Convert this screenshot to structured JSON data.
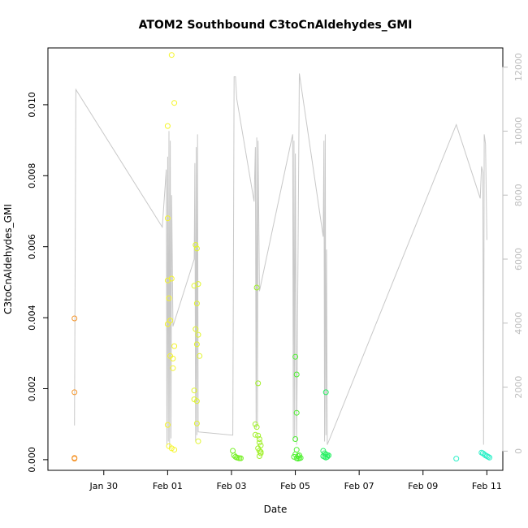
{
  "chart_data": {
    "type": "scatter",
    "title": "ATOM2 Southbound C3toCnAldehydes_GMI",
    "xlabel": "Date",
    "ylabel": "C3toCnAldehydes_GMI",
    "xlim": [
      "2017-01-28T06:00",
      "2017-02-11T12:00"
    ],
    "ylim": [
      -0.0003,
      0.0116
    ],
    "y_ticks": [
      "0.000",
      "0.002",
      "0.004",
      "0.006",
      "0.008",
      "0.010"
    ],
    "x_ticks": [
      "Jan 30",
      "Feb 01",
      "Feb 03",
      "Feb 05",
      "Feb 07",
      "Feb 09",
      "Feb 11"
    ],
    "right_axis": {
      "color": "#bebebe",
      "ylim": [
        -600,
        12600
      ],
      "ticks": [
        "0",
        "2000",
        "4000",
        "6000",
        "8000",
        "10000",
        "12000"
      ]
    },
    "grid": false,
    "points": [
      {
        "x": "2017-01-29T02:00",
        "y": 0.00398,
        "color": "#f5962d"
      },
      {
        "x": "2017-01-29T02:00",
        "y": 0.0019,
        "color": "#f5962d"
      },
      {
        "x": "2017-01-29T02:00",
        "y": 5e-05,
        "color": "#f5962d"
      },
      {
        "x": "2017-01-29T02:00",
        "y": 3e-05,
        "color": "#f5962d"
      },
      {
        "x": "2017-02-01T03:00",
        "y": 0.0114,
        "color": "#f5f528"
      },
      {
        "x": "2017-02-01T05:00",
        "y": 0.01005,
        "color": "#f5f528"
      },
      {
        "x": "2017-02-01T00:00",
        "y": 0.0094,
        "color": "#f5f528"
      },
      {
        "x": "2017-02-01T00:00",
        "y": 0.0068,
        "color": "#f5f528"
      },
      {
        "x": "2017-02-01T03:00",
        "y": 0.0051,
        "color": "#f5f528"
      },
      {
        "x": "2017-02-01T00:00",
        "y": 0.00505,
        "color": "#f5f528"
      },
      {
        "x": "2017-02-01T01:00",
        "y": 0.00455,
        "color": "#f5f528"
      },
      {
        "x": "2017-02-01T02:00",
        "y": 0.00392,
        "color": "#f5f528"
      },
      {
        "x": "2017-02-01T00:00",
        "y": 0.00382,
        "color": "#f5f528"
      },
      {
        "x": "2017-02-01T05:00",
        "y": 0.0032,
        "color": "#f5f528"
      },
      {
        "x": "2017-02-01T02:00",
        "y": 0.00292,
        "color": "#f5f528"
      },
      {
        "x": "2017-02-01T04:00",
        "y": 0.00285,
        "color": "#f5f528"
      },
      {
        "x": "2017-02-01T04:00",
        "y": 0.00258,
        "color": "#f5f528"
      },
      {
        "x": "2017-02-01T00:00",
        "y": 0.00098,
        "color": "#f5f528"
      },
      {
        "x": "2017-02-01T01:00",
        "y": 0.00038,
        "color": "#f5f528"
      },
      {
        "x": "2017-02-01T03:00",
        "y": 0.00032,
        "color": "#f5f528"
      },
      {
        "x": "2017-02-01T05:00",
        "y": 0.00028,
        "color": "#f5f528"
      },
      {
        "x": "2017-02-01T21:00",
        "y": 0.00605,
        "color": "#e1f52d"
      },
      {
        "x": "2017-02-01T22:00",
        "y": 0.00595,
        "color": "#e1f52d"
      },
      {
        "x": "2017-02-01T20:00",
        "y": 0.0049,
        "color": "#e1f52d"
      },
      {
        "x": "2017-02-01T23:00",
        "y": 0.00495,
        "color": "#e1f52d"
      },
      {
        "x": "2017-02-01T22:00",
        "y": 0.0044,
        "color": "#e1f52d"
      },
      {
        "x": "2017-02-01T21:00",
        "y": 0.00368,
        "color": "#e1f52d"
      },
      {
        "x": "2017-02-01T23:00",
        "y": 0.00352,
        "color": "#e1f52d"
      },
      {
        "x": "2017-02-01T22:00",
        "y": 0.00325,
        "color": "#e1f52d"
      },
      {
        "x": "2017-02-02T00:00",
        "y": 0.00292,
        "color": "#e1f52d"
      },
      {
        "x": "2017-02-01T20:00",
        "y": 0.00195,
        "color": "#e1f52d"
      },
      {
        "x": "2017-02-01T20:00",
        "y": 0.0017,
        "color": "#e1f52d"
      },
      {
        "x": "2017-02-01T22:00",
        "y": 0.00165,
        "color": "#e1f52d"
      },
      {
        "x": "2017-02-01T22:00",
        "y": 0.00102,
        "color": "#e1f52d"
      },
      {
        "x": "2017-02-01T23:00",
        "y": 0.00052,
        "color": "#e1f52d"
      },
      {
        "x": "2017-02-03T01:00",
        "y": 0.00025,
        "color": "#78f028"
      },
      {
        "x": "2017-02-03T02:00",
        "y": 0.00012,
        "color": "#78f028"
      },
      {
        "x": "2017-02-03T03:00",
        "y": 8e-05,
        "color": "#78f028"
      },
      {
        "x": "2017-02-03T04:00",
        "y": 6e-05,
        "color": "#78f028"
      },
      {
        "x": "2017-02-03T05:00",
        "y": 5e-05,
        "color": "#78f028"
      },
      {
        "x": "2017-02-03T06:00",
        "y": 4e-05,
        "color": "#78f028"
      },
      {
        "x": "2017-02-03T07:00",
        "y": 4e-05,
        "color": "#78f028"
      },
      {
        "x": "2017-02-03T19:00",
        "y": 0.00485,
        "color": "#a0f028"
      },
      {
        "x": "2017-02-03T20:00",
        "y": 0.00215,
        "color": "#a0f028"
      },
      {
        "x": "2017-02-03T18:00",
        "y": 0.001,
        "color": "#a0f028"
      },
      {
        "x": "2017-02-03T19:00",
        "y": 0.00092,
        "color": "#a0f028"
      },
      {
        "x": "2017-02-03T18:00",
        "y": 0.0007,
        "color": "#a0f028"
      },
      {
        "x": "2017-02-03T20:00",
        "y": 0.00068,
        "color": "#a0f028"
      },
      {
        "x": "2017-02-03T21:00",
        "y": 0.00058,
        "color": "#a0f028"
      },
      {
        "x": "2017-02-03T21:00",
        "y": 0.00048,
        "color": "#a0f028"
      },
      {
        "x": "2017-02-03T22:00",
        "y": 0.0004,
        "color": "#a0f028"
      },
      {
        "x": "2017-02-03T20:00",
        "y": 0.00032,
        "color": "#a0f028"
      },
      {
        "x": "2017-02-03T21:00",
        "y": 0.00025,
        "color": "#a0f028"
      },
      {
        "x": "2017-02-03T22:00",
        "y": 0.00018,
        "color": "#a0f028"
      },
      {
        "x": "2017-02-03T21:00",
        "y": 0.0001,
        "color": "#a0f028"
      },
      {
        "x": "2017-02-03T22:00",
        "y": 0.00022,
        "color": "#a0f028"
      },
      {
        "x": "2017-02-05T00:00",
        "y": 0.0029,
        "color": "#50f032"
      },
      {
        "x": "2017-02-05T01:00",
        "y": 0.0024,
        "color": "#50f032"
      },
      {
        "x": "2017-02-05T01:00",
        "y": 0.00132,
        "color": "#50f032"
      },
      {
        "x": "2017-02-05T00:00",
        "y": 0.00058,
        "color": "#50f032"
      },
      {
        "x": "2017-02-05T01:00",
        "y": 0.00028,
        "color": "#50f032"
      },
      {
        "x": "2017-02-05T00:00",
        "y": 0.00015,
        "color": "#50f032"
      },
      {
        "x": "2017-02-05T02:00",
        "y": 0.0001,
        "color": "#50f032"
      },
      {
        "x": "2017-02-05T03:00",
        "y": 0.00012,
        "color": "#50f032"
      },
      {
        "x": "2017-02-04T23:00",
        "y": 8e-05,
        "color": "#50f032"
      },
      {
        "x": "2017-02-05T01:00",
        "y": 4e-05,
        "color": "#50f032"
      },
      {
        "x": "2017-02-05T02:00",
        "y": 3e-05,
        "color": "#50f032"
      },
      {
        "x": "2017-02-05T03:00",
        "y": 4e-05,
        "color": "#50f032"
      },
      {
        "x": "2017-02-05T04:00",
        "y": 5e-05,
        "color": "#50f032"
      },
      {
        "x": "2017-02-05T23:00",
        "y": 0.0019,
        "color": "#28f064"
      },
      {
        "x": "2017-02-05T21:00",
        "y": 0.00025,
        "color": "#28f064"
      },
      {
        "x": "2017-02-05T22:00",
        "y": 0.00018,
        "color": "#28f064"
      },
      {
        "x": "2017-02-05T23:00",
        "y": 0.00015,
        "color": "#28f064"
      },
      {
        "x": "2017-02-06T00:00",
        "y": 0.00013,
        "color": "#28f064"
      },
      {
        "x": "2017-02-06T01:00",
        "y": 0.00012,
        "color": "#28f064"
      },
      {
        "x": "2017-02-05T21:00",
        "y": 0.0001,
        "color": "#28f064"
      },
      {
        "x": "2017-02-05T22:00",
        "y": 8e-05,
        "color": "#28f064"
      },
      {
        "x": "2017-02-05T23:00",
        "y": 6e-05,
        "color": "#28f064"
      },
      {
        "x": "2017-02-06T00:00",
        "y": 8e-05,
        "color": "#28f064"
      },
      {
        "x": "2017-02-10T01:00",
        "y": 3e-05,
        "color": "#2df0c8"
      },
      {
        "x": "2017-02-10T20:00",
        "y": 0.0002,
        "color": "#2df0c8"
      },
      {
        "x": "2017-02-10T21:00",
        "y": 0.00018,
        "color": "#2df0c8"
      },
      {
        "x": "2017-02-10T22:00",
        "y": 0.00015,
        "color": "#2df0c8"
      },
      {
        "x": "2017-02-10T23:00",
        "y": 0.00012,
        "color": "#2df0c8"
      },
      {
        "x": "2017-02-11T00:00",
        "y": 0.0001,
        "color": "#2df0c8"
      },
      {
        "x": "2017-02-11T01:00",
        "y": 8e-05,
        "color": "#2df0c8"
      },
      {
        "x": "2017-02-11T02:00",
        "y": 6e-05,
        "color": "#2df0c8"
      }
    ],
    "right_series": {
      "color": "#c8c8c8",
      "points": [
        [
          "2017-01-29T02:00",
          800
        ],
        [
          "2017-01-29T03:00",
          11300
        ],
        [
          "2017-01-31T20:00",
          7000
        ],
        [
          "2017-01-31T23:00",
          8800
        ],
        [
          "2017-01-31T23:30",
          200
        ],
        [
          "2017-02-01T00:00",
          9200
        ],
        [
          "2017-02-01T00:30",
          300
        ],
        [
          "2017-02-01T01:00",
          10000
        ],
        [
          "2017-02-01T01:30",
          100
        ],
        [
          "2017-02-01T02:00",
          9700
        ],
        [
          "2017-02-01T02:30",
          400
        ],
        [
          "2017-02-01T03:00",
          8000
        ],
        [
          "2017-02-01T04:00",
          3900
        ],
        [
          "2017-02-01T20:00",
          6000
        ],
        [
          "2017-02-01T20:30",
          9000
        ],
        [
          "2017-02-01T21:00",
          300
        ],
        [
          "2017-02-01T21:30",
          9500
        ],
        [
          "2017-02-01T22:00",
          500
        ],
        [
          "2017-02-01T22:30",
          9900
        ],
        [
          "2017-02-01T23:00",
          600
        ],
        [
          "2017-02-03T01:00",
          500
        ],
        [
          "2017-02-03T02:00",
          11700
        ],
        [
          "2017-02-03T03:00",
          11700
        ],
        [
          "2017-02-03T04:00",
          11000
        ],
        [
          "2017-02-03T17:00",
          7800
        ],
        [
          "2017-02-03T18:00",
          9500
        ],
        [
          "2017-02-03T18:30",
          700
        ],
        [
          "2017-02-03T19:00",
          9800
        ],
        [
          "2017-02-03T19:30",
          900
        ],
        [
          "2017-02-03T20:00",
          9700
        ],
        [
          "2017-02-03T21:00",
          5000
        ],
        [
          "2017-02-04T22:00",
          9900
        ],
        [
          "2017-02-04T22:30",
          300
        ],
        [
          "2017-02-04T23:00",
          9700
        ],
        [
          "2017-02-04T23:30",
          400
        ],
        [
          "2017-02-05T00:00",
          9300
        ],
        [
          "2017-02-05T01:00",
          200
        ],
        [
          "2017-02-05T03:00",
          11800
        ],
        [
          "2017-02-05T21:00",
          6700
        ],
        [
          "2017-02-05T21:30",
          9700
        ],
        [
          "2017-02-05T22:00",
          300
        ],
        [
          "2017-02-05T22:30",
          9900
        ],
        [
          "2017-02-05T23:00",
          500
        ],
        [
          "2017-02-05T23:30",
          6300
        ],
        [
          "2017-02-06T00:00",
          200
        ],
        [
          "2017-02-10T01:00",
          10200
        ],
        [
          "2017-02-10T19:00",
          7900
        ],
        [
          "2017-02-10T20:00",
          8900
        ],
        [
          "2017-02-10T21:00",
          8700
        ],
        [
          "2017-02-10T21:30",
          200
        ],
        [
          "2017-02-10T22:00",
          9900
        ],
        [
          "2017-02-10T23:00",
          9600
        ],
        [
          "2017-02-11T00:00",
          6600
        ]
      ]
    }
  }
}
